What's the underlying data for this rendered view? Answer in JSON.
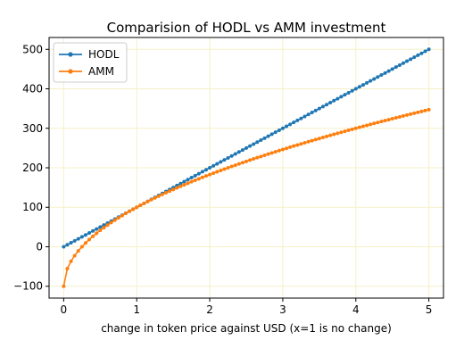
{
  "chart_data": {
    "type": "line",
    "title": "Comparision of HODL vs AMM investment",
    "xlabel": "change in token price against USD (x=1 is no change)",
    "ylabel": "",
    "xlim": [
      -0.2,
      5.2
    ],
    "ylim": [
      -130,
      530
    ],
    "xticks": [
      0,
      1,
      2,
      3,
      4,
      5
    ],
    "yticks": [
      -100,
      0,
      100,
      200,
      300,
      400,
      500
    ],
    "xtick_labels": [
      "0",
      "1",
      "2",
      "3",
      "4",
      "5"
    ],
    "ytick_labels": [
      "−100",
      "0",
      "100",
      "200",
      "300",
      "400",
      "500"
    ],
    "grid": true,
    "legend": "top-left",
    "x_range": {
      "start": 0,
      "end": 5,
      "step": 0.05
    },
    "series": [
      {
        "name": "HODL",
        "formula": "100*x",
        "color": "#1f77b4"
      },
      {
        "name": "AMM",
        "formula": "200*sqrt(x) - 100",
        "color": "#ff7f0e"
      }
    ]
  }
}
